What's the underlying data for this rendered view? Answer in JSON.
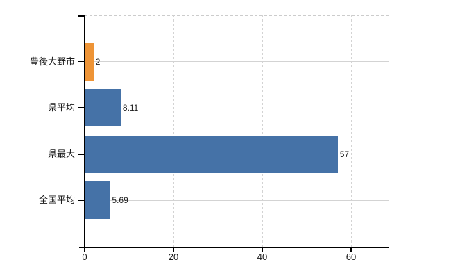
{
  "chart_data": {
    "type": "bar",
    "orientation": "horizontal",
    "title": "",
    "xlabel": "",
    "ylabel": "",
    "categories": [
      "豊後大野市",
      "県平均",
      "県最大",
      "全国平均"
    ],
    "values": [
      2,
      8.11,
      57,
      5.69
    ],
    "value_labels": [
      "2",
      "8.11",
      "57",
      "5.69"
    ],
    "bar_colors": [
      "#EE9436",
      "#4572A7",
      "#4572A7",
      "#4572A7"
    ],
    "x_axis": {
      "min": 0,
      "max": 68.4,
      "ticks": [
        0,
        20,
        40,
        60
      ],
      "tick_labels": [
        "0",
        "20",
        "40",
        "60"
      ]
    },
    "legend": "none",
    "grid": {
      "vertical_style": "dashed",
      "horizontal_style": "solid",
      "color": "#d3d3d3",
      "top_border_style": "dashed"
    },
    "colors": {
      "highlight_bar": "#EE9436",
      "default_bar": "#4572A7",
      "axis": "#000000",
      "text": "#1a1a1a",
      "background": "#ffffff"
    }
  }
}
